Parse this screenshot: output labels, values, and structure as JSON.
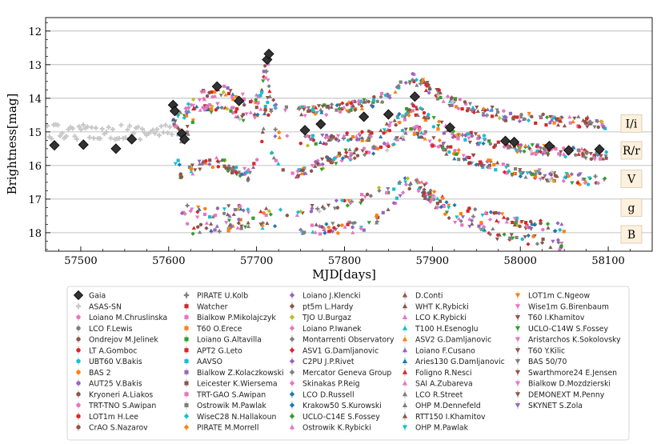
{
  "chart_data": {
    "type": "scatter",
    "title": "",
    "xlabel": "MJD[days]",
    "ylabel": "Brightness[mag]",
    "xlim": [
      57460,
      58150
    ],
    "ylim": [
      18.55,
      11.6
    ],
    "y_inverted": true,
    "grid": "horizontal",
    "x_ticks": [
      57500,
      57600,
      57700,
      57800,
      57900,
      58000,
      58100
    ],
    "y_ticks": [
      12,
      13,
      14,
      15,
      16,
      17,
      18
    ],
    "band_labels": [
      {
        "label": "I/i",
        "mag": 14.75
      },
      {
        "label": "R/r",
        "mag": 15.55
      },
      {
        "label": "V",
        "mag": 16.4
      },
      {
        "label": "g",
        "mag": 17.25
      },
      {
        "label": "B",
        "mag": 18.05
      }
    ],
    "gaia_series": {
      "name": "Gaia",
      "x": [
        57470,
        57503,
        57540,
        57558,
        57605,
        57607,
        57615,
        57618,
        57655,
        57680,
        57712,
        57714,
        57755,
        57773,
        57822,
        57850,
        57880,
        57920,
        57983,
        57993,
        58033,
        58055,
        58090
      ],
      "y": [
        15.4,
        15.38,
        15.5,
        15.22,
        14.2,
        14.38,
        15.05,
        15.22,
        13.65,
        14.08,
        12.85,
        12.68,
        14.95,
        14.77,
        14.55,
        14.48,
        13.95,
        14.87,
        15.27,
        15.3,
        15.42,
        15.55,
        15.52
      ]
    },
    "band_curves": [
      {
        "band": "I/i",
        "x": [
          57605,
          57615,
          57640,
          57660,
          57690,
          57705,
          57712,
          57718,
          57740,
          57800,
          57840,
          57878,
          57920,
          57980,
          58030,
          58100
        ],
        "y": [
          14.3,
          14.5,
          13.9,
          13.75,
          14.1,
          14.0,
          12.6,
          14.2,
          14.4,
          14.3,
          14.05,
          13.4,
          14.1,
          14.5,
          14.65,
          14.75
        ]
      },
      {
        "band": "R/r",
        "x": [
          57605,
          57615,
          57640,
          57660,
          57690,
          57705,
          57712,
          57718,
          57740,
          57800,
          57840,
          57878,
          57920,
          57980,
          58030,
          58100
        ],
        "y": [
          14.7,
          15.2,
          14.3,
          14.2,
          14.6,
          14.3,
          13.0,
          15.0,
          15.3,
          15.2,
          15.05,
          14.3,
          15.0,
          15.4,
          15.55,
          15.7
        ]
      },
      {
        "band": "V",
        "x": [
          57605,
          57615,
          57640,
          57660,
          57690,
          57705,
          57712,
          57718,
          57740,
          57800,
          57840,
          57878,
          57920,
          57980,
          58030,
          58100
        ],
        "y": [
          15.6,
          16.3,
          15.9,
          15.9,
          16.3,
          15.4,
          13.9,
          15.8,
          16.3,
          15.7,
          15.55,
          14.9,
          15.6,
          16.1,
          16.3,
          16.5
        ]
      },
      {
        "band": "g",
        "x": [
          57615,
          57630,
          57700,
          57720,
          57780,
          57830,
          57878,
          57920,
          57980,
          58050
        ],
        "y": [
          17.3,
          17.4,
          17.3,
          17.5,
          17.2,
          16.9,
          16.4,
          17.2,
          17.6,
          17.9
        ]
      },
      {
        "band": "B",
        "x": [
          57615,
          57630,
          57700,
          57720,
          57780,
          57830,
          57878,
          57920,
          57980,
          58050
        ],
        "y": [
          17.8,
          17.9,
          17.7,
          17.9,
          17.9,
          17.8,
          16.5,
          17.5,
          18.1,
          18.4
        ]
      }
    ],
    "legend": [
      {
        "label": "Gaia",
        "color": "#333333",
        "marker": "D"
      },
      {
        "label": "ASAS-SN",
        "color": "#c8c8c8",
        "marker": "P"
      },
      {
        "label": "Loiano M.Chruslinska",
        "color": "#e377c2",
        "marker": "o"
      },
      {
        "label": "LCO F.Lewis",
        "color": "#7f7f7f",
        "marker": "o"
      },
      {
        "label": "Ondrejov M.Jelinek",
        "color": "#8c564b",
        "marker": "o"
      },
      {
        "label": "LT A.Gomboc",
        "color": "#d62728",
        "marker": "o"
      },
      {
        "label": "UBT60 V.Bakis",
        "color": "#17becf",
        "marker": "o"
      },
      {
        "label": "BAS 2",
        "color": "#ff7f0e",
        "marker": "o"
      },
      {
        "label": "AUT25 V.Bakis",
        "color": "#9467bd",
        "marker": "o"
      },
      {
        "label": "Kryoneri A.Liakos",
        "color": "#8c564b",
        "marker": "o"
      },
      {
        "label": "TRT-TNO S.Awipan",
        "color": "#e377c2",
        "marker": "o"
      },
      {
        "label": "LOT1m H.Lee",
        "color": "#d62728",
        "marker": "o"
      },
      {
        "label": "CrAO S.Nazarov",
        "color": "#8c564b",
        "marker": "o"
      },
      {
        "label": "PIRATE U.Kolb",
        "color": "#7f7f7f",
        "marker": "P"
      },
      {
        "label": "Watcher",
        "color": "#d62728",
        "marker": "s"
      },
      {
        "label": "Bialkow P.Mikolajczyk",
        "color": "#e377c2",
        "marker": "s"
      },
      {
        "label": "T60 O.Erece",
        "color": "#ff7f0e",
        "marker": "s"
      },
      {
        "label": "Loiano G.Altavilla",
        "color": "#2ca02c",
        "marker": "s"
      },
      {
        "label": "APT2 G.Leto",
        "color": "#d62728",
        "marker": "s"
      },
      {
        "label": "AAVSO",
        "color": "#17becf",
        "marker": "s"
      },
      {
        "label": "Bialkow Z.Kolaczkowski",
        "color": "#9467bd",
        "marker": "s"
      },
      {
        "label": "Leicester K.Wiersema",
        "color": "#8c564b",
        "marker": "s"
      },
      {
        "label": "TRT-GAO S.Awipan",
        "color": "#e377c2",
        "marker": "s"
      },
      {
        "label": "Ostrowik M.Pawlak",
        "color": "#7f7f7f",
        "marker": "s"
      },
      {
        "label": "WiseC28 N.Hallakoun",
        "color": "#17becf",
        "marker": "D"
      },
      {
        "label": "PIRATE M.Morrell",
        "color": "#ff7f0e",
        "marker": "D"
      },
      {
        "label": "Loiano J.Klencki",
        "color": "#9467bd",
        "marker": "D"
      },
      {
        "label": "pt5m L.Hardy",
        "color": "#8c564b",
        "marker": "D"
      },
      {
        "label": "TJO U.Burgaz",
        "color": "#bcbd22",
        "marker": "D"
      },
      {
        "label": "Loiano P.Iwanek",
        "color": "#e377c2",
        "marker": "D"
      },
      {
        "label": "Montarrenti Observatory",
        "color": "#7f7f7f",
        "marker": "D"
      },
      {
        "label": "ASV1 G.Damljanovic",
        "color": "#d62728",
        "marker": "D"
      },
      {
        "label": "C2PU J.P.Rivet",
        "color": "#9467bd",
        "marker": "D"
      },
      {
        "label": "Mercator Geneva Group",
        "color": "#7f7f7f",
        "marker": "D"
      },
      {
        "label": "Skinakas P.Reig",
        "color": "#e377c2",
        "marker": "D"
      },
      {
        "label": "LCO D.Russell",
        "color": "#1f77b4",
        "marker": "D"
      },
      {
        "label": "Krakow50 S.Kurowski",
        "color": "#1f77b4",
        "marker": "D"
      },
      {
        "label": "UCLO-C14E S.Fossey",
        "color": "#2ca02c",
        "marker": "D"
      },
      {
        "label": "Ostrowik K.Rybicki",
        "color": "#e377c2",
        "marker": "^"
      },
      {
        "label": "D.Conti",
        "color": "#8c564b",
        "marker": "^"
      },
      {
        "label": "WHT K.Rybicki",
        "color": "#8c564b",
        "marker": "^"
      },
      {
        "label": "LCO K.Rybicki",
        "color": "#e377c2",
        "marker": "^"
      },
      {
        "label": "T100 H.Esenoglu",
        "color": "#17becf",
        "marker": "^"
      },
      {
        "label": "ASV2 G.Damljanovic",
        "color": "#ff7f0e",
        "marker": "^"
      },
      {
        "label": "Loiano F.Cusano",
        "color": "#9467bd",
        "marker": "^"
      },
      {
        "label": "Aries130 G.Damljanovic",
        "color": "#1f77b4",
        "marker": "^"
      },
      {
        "label": "Foligno R.Nesci",
        "color": "#d62728",
        "marker": "^"
      },
      {
        "label": "SAI A.Zubareva",
        "color": "#e377c2",
        "marker": "^"
      },
      {
        "label": "LCO R.Street",
        "color": "#7f7f7f",
        "marker": "^"
      },
      {
        "label": "OHP M.Dennefeld",
        "color": "#7f7f7f",
        "marker": "^"
      },
      {
        "label": "RTT150 I.Khamitov",
        "color": "#8c564b",
        "marker": "^"
      },
      {
        "label": "OHP M.Pawlak",
        "color": "#17becf",
        "marker": "v"
      },
      {
        "label": "LOT1m C.Ngeow",
        "color": "#ff7f0e",
        "marker": "v"
      },
      {
        "label": "Wise1m G.Birenbaum",
        "color": "#e377c2",
        "marker": "v"
      },
      {
        "label": "T60 I.Khamitov",
        "color": "#8c564b",
        "marker": "v"
      },
      {
        "label": "UCLO-C14W S.Fossey",
        "color": "#2ca02c",
        "marker": "v"
      },
      {
        "label": "Aristarchos K.Sokolovsky",
        "color": "#e377c2",
        "marker": "v"
      },
      {
        "label": "T60 Y.Kilic",
        "color": "#8c564b",
        "marker": "v"
      },
      {
        "label": "BAS 50/70",
        "color": "#7f7f7f",
        "marker": "v"
      },
      {
        "label": "Swarthmore24 E.Jensen",
        "color": "#8c564b",
        "marker": "v"
      },
      {
        "label": "Bialkow D.Mozdzierski",
        "color": "#e377c2",
        "marker": "v"
      },
      {
        "label": "DEMONEXT M.Penny",
        "color": "#8c564b",
        "marker": "v"
      },
      {
        "label": "SKYNET S.Zola",
        "color": "#9467bd",
        "marker": "v"
      }
    ]
  }
}
